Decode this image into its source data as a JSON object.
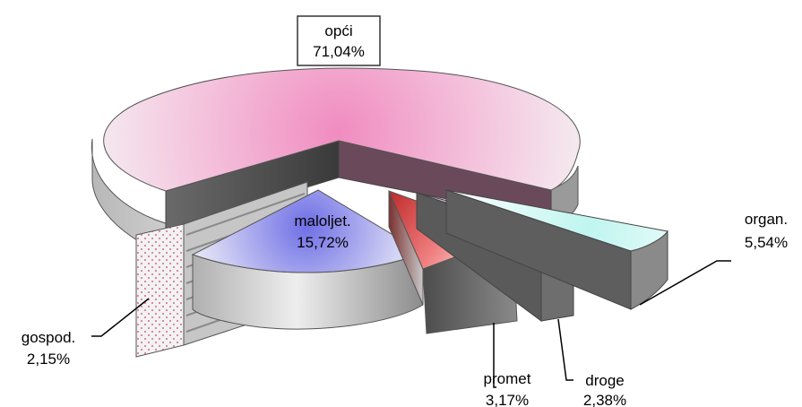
{
  "chart_data": {
    "type": "pie",
    "style": "3d-exploded",
    "slices": [
      {
        "label": "opći",
        "value": 71.04,
        "value_text": "71,04%",
        "color": "#f08cc0"
      },
      {
        "label": "maloljet.",
        "value": 15.72,
        "value_text": "15,72%",
        "color": "#6f6fe6"
      },
      {
        "label": "gospod.",
        "value": 2.15,
        "value_text": "2,15%",
        "color": "#ffffff"
      },
      {
        "label": "promet",
        "value": 3.17,
        "value_text": "3,17%",
        "color": "#e05a5a"
      },
      {
        "label": "droge",
        "value": 2.38,
        "value_text": "2,38%",
        "color": "#7a2a8a"
      },
      {
        "label": "organ.",
        "value": 5.54,
        "value_text": "5,54%",
        "color": "#bff5f0"
      }
    ]
  }
}
